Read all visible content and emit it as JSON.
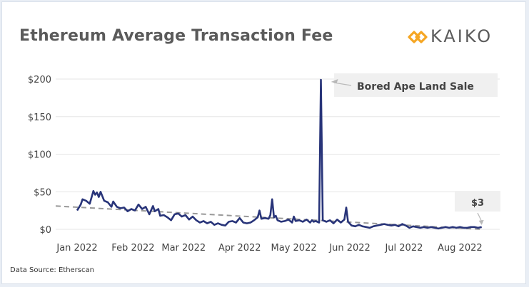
{
  "title": "Ethereum Average Transaction Fee",
  "logo": {
    "text": "KAIKO",
    "accent_color": "#f5a623",
    "icon": "kaiko-diamond-chain-icon"
  },
  "source": "Data Source: Etherscan",
  "colors": {
    "line": "#283479",
    "trend": "#999999",
    "grid": "#e6e6e6",
    "annotation_box": "#f0f0f0"
  },
  "chart_data": {
    "type": "line",
    "title": "Ethereum Average Transaction Fee",
    "xlabel": "",
    "ylabel": "",
    "x_ticks": [
      "Jan 2022",
      "Feb 2022",
      "Mar 2022",
      "Apr 2022",
      "May 2022",
      "Jun 2022",
      "Jul 2022",
      "Aug 2022"
    ],
    "y_ticks": [
      "$0",
      "$50",
      "$100",
      "$150",
      "$200"
    ],
    "ylim": [
      0,
      200
    ],
    "grid": true,
    "legend": "none",
    "series": [
      {
        "values": [
          [
            "2022-01-01",
            25
          ],
          [
            "2022-01-03",
            33
          ],
          [
            "2022-01-04",
            40
          ],
          [
            "2022-01-06",
            38
          ],
          [
            "2022-01-08",
            34
          ],
          [
            "2022-01-10",
            51
          ],
          [
            "2022-01-11",
            46
          ],
          [
            "2022-01-12",
            49
          ],
          [
            "2022-01-13",
            43
          ],
          [
            "2022-01-14",
            50
          ],
          [
            "2022-01-16",
            38
          ],
          [
            "2022-01-18",
            36
          ],
          [
            "2022-01-20",
            30
          ],
          [
            "2022-01-21",
            37
          ],
          [
            "2022-01-23",
            30
          ],
          [
            "2022-01-25",
            28
          ],
          [
            "2022-01-27",
            29
          ],
          [
            "2022-01-29",
            24
          ],
          [
            "2022-01-31",
            27
          ],
          [
            "2022-02-02",
            25
          ],
          [
            "2022-02-04",
            33
          ],
          [
            "2022-02-06",
            27
          ],
          [
            "2022-02-08",
            30
          ],
          [
            "2022-02-10",
            20
          ],
          [
            "2022-02-12",
            31
          ],
          [
            "2022-02-13",
            24
          ],
          [
            "2022-02-15",
            27
          ],
          [
            "2022-02-16",
            18
          ],
          [
            "2022-02-18",
            19
          ],
          [
            "2022-02-20",
            16
          ],
          [
            "2022-02-22",
            12
          ],
          [
            "2022-02-24",
            20
          ],
          [
            "2022-02-26",
            21
          ],
          [
            "2022-02-28",
            17
          ],
          [
            "2022-03-02",
            19
          ],
          [
            "2022-03-04",
            13
          ],
          [
            "2022-03-06",
            17
          ],
          [
            "2022-03-08",
            12
          ],
          [
            "2022-03-10",
            9
          ],
          [
            "2022-03-12",
            11
          ],
          [
            "2022-03-14",
            8
          ],
          [
            "2022-03-16",
            10
          ],
          [
            "2022-03-18",
            6
          ],
          [
            "2022-03-20",
            8
          ],
          [
            "2022-03-22",
            6
          ],
          [
            "2022-03-24",
            5
          ],
          [
            "2022-03-26",
            10
          ],
          [
            "2022-03-28",
            11
          ],
          [
            "2022-03-30",
            9
          ],
          [
            "2022-04-01",
            15
          ],
          [
            "2022-04-03",
            9
          ],
          [
            "2022-04-05",
            8
          ],
          [
            "2022-04-07",
            9
          ],
          [
            "2022-04-09",
            12
          ],
          [
            "2022-04-11",
            16
          ],
          [
            "2022-04-12",
            25
          ],
          [
            "2022-04-13",
            14
          ],
          [
            "2022-04-15",
            15
          ],
          [
            "2022-04-17",
            14
          ],
          [
            "2022-04-18",
            19
          ],
          [
            "2022-04-19",
            40
          ],
          [
            "2022-04-20",
            16
          ],
          [
            "2022-04-21",
            18
          ],
          [
            "2022-04-22",
            12
          ],
          [
            "2022-04-24",
            10
          ],
          [
            "2022-04-26",
            11
          ],
          [
            "2022-04-28",
            13
          ],
          [
            "2022-04-30",
            9
          ],
          [
            "2022-05-01",
            17
          ],
          [
            "2022-05-02",
            11
          ],
          [
            "2022-05-04",
            12
          ],
          [
            "2022-05-06",
            10
          ],
          [
            "2022-05-08",
            13
          ],
          [
            "2022-05-10",
            9
          ],
          [
            "2022-05-11",
            12
          ],
          [
            "2022-05-12",
            10
          ],
          [
            "2022-05-13",
            11
          ],
          [
            "2022-05-14",
            10
          ],
          [
            "2022-05-15",
            9
          ],
          [
            "2022-05-16",
            199
          ],
          [
            "2022-05-17",
            12
          ],
          [
            "2022-05-19",
            10
          ],
          [
            "2022-05-21",
            12
          ],
          [
            "2022-05-23",
            8
          ],
          [
            "2022-05-25",
            13
          ],
          [
            "2022-05-27",
            9
          ],
          [
            "2022-05-29",
            13
          ],
          [
            "2022-05-30",
            29
          ],
          [
            "2022-05-31",
            10
          ],
          [
            "2022-06-02",
            5
          ],
          [
            "2022-06-04",
            4
          ],
          [
            "2022-06-06",
            6
          ],
          [
            "2022-06-08",
            4
          ],
          [
            "2022-06-10",
            3
          ],
          [
            "2022-06-12",
            2
          ],
          [
            "2022-06-14",
            4
          ],
          [
            "2022-06-16",
            5
          ],
          [
            "2022-06-18",
            6
          ],
          [
            "2022-06-20",
            7
          ],
          [
            "2022-06-22",
            6
          ],
          [
            "2022-06-24",
            5
          ],
          [
            "2022-06-26",
            6
          ],
          [
            "2022-06-28",
            4
          ],
          [
            "2022-06-30",
            7
          ],
          [
            "2022-07-02",
            5
          ],
          [
            "2022-07-04",
            2
          ],
          [
            "2022-07-06",
            4
          ],
          [
            "2022-07-08",
            3
          ],
          [
            "2022-07-10",
            2
          ],
          [
            "2022-07-12",
            3
          ],
          [
            "2022-07-14",
            2
          ],
          [
            "2022-07-16",
            3
          ],
          [
            "2022-07-18",
            2
          ],
          [
            "2022-07-20",
            1
          ],
          [
            "2022-07-22",
            2
          ],
          [
            "2022-07-24",
            3
          ],
          [
            "2022-07-26",
            2
          ],
          [
            "2022-07-28",
            3
          ],
          [
            "2022-07-30",
            2
          ],
          [
            "2022-08-01",
            3
          ],
          [
            "2022-08-03",
            2
          ],
          [
            "2022-08-05",
            2
          ],
          [
            "2022-08-07",
            3
          ],
          [
            "2022-08-09",
            3
          ],
          [
            "2022-08-11",
            2
          ],
          [
            "2022-08-13",
            3
          ]
        ]
      }
    ],
    "trendline": {
      "style": "dashed",
      "values": [
        [
          "2022-01-01",
          31
        ],
        [
          "2022-08-13",
          0
        ]
      ]
    },
    "annotations": [
      {
        "label": "Bored Ape Land Sale",
        "x": "2022-05-16",
        "y": 199
      },
      {
        "label": "$3",
        "x": "2022-08-13",
        "y": 3
      }
    ]
  }
}
